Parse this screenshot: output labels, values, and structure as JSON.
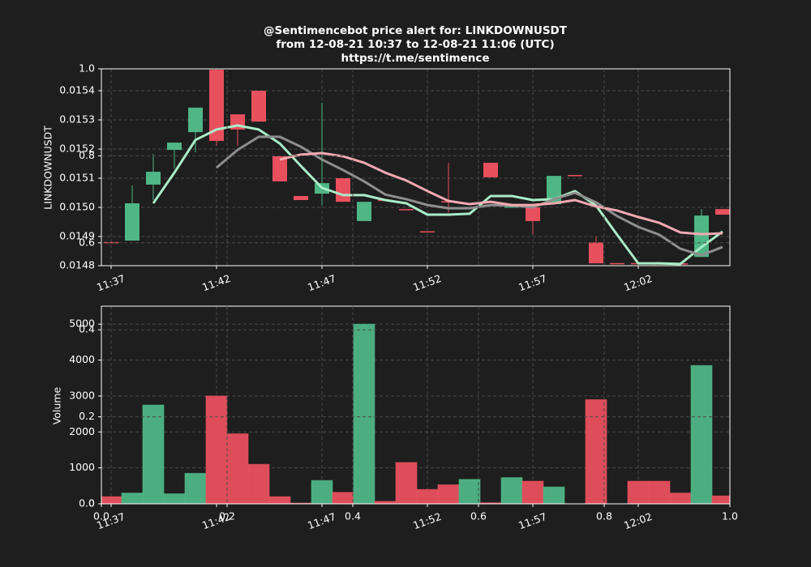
{
  "chart_data": [
    {
      "type": "candlestick",
      "title": [
        "@Sentimencebot price alert for: LINKDOWNUSDT",
        "from 12-08-21 10:37 to 12-08-21 11:06 (UTC)",
        "https://t.me/sentimence"
      ],
      "y_label": "LINKDOWNUSDT",
      "categories": [
        "11:37",
        null,
        null,
        null,
        null,
        "11:42",
        null,
        null,
        null,
        null,
        "11:47",
        null,
        null,
        null,
        null,
        "11:52",
        null,
        null,
        null,
        null,
        "11:57",
        null,
        null,
        null,
        null,
        "12:02",
        null,
        null,
        null,
        null
      ],
      "open": [
        0.014881,
        0.014886,
        0.015078,
        0.015197,
        0.015258,
        0.015472,
        0.015319,
        0.0154,
        0.015175,
        0.015039,
        0.015047,
        0.0151,
        0.014953,
        0.015026,
        0.014994,
        0.014918,
        0.015021,
        0.015,
        0.015153,
        0.015003,
        0.015,
        0.015011,
        0.015111,
        0.01488,
        0.014809,
        0.014809,
        0.014808,
        0.014808,
        0.01483,
        0.014994
      ],
      "high": [
        0.014881,
        0.015075,
        0.015183,
        0.015222,
        0.015342,
        0.015472,
        0.015319,
        0.0154,
        0.015175,
        0.015039,
        0.015358,
        0.0151,
        0.015019,
        0.015026,
        0.014994,
        0.014918,
        0.015153,
        0.015001,
        0.015153,
        0.015003,
        0.015,
        0.015108,
        0.015111,
        0.0149,
        0.014809,
        0.014809,
        0.014808,
        0.014808,
        0.014994,
        0.014994
      ],
      "low": [
        0.01488,
        0.014886,
        0.015025,
        0.015133,
        0.015189,
        0.015211,
        0.015211,
        0.015294,
        0.015089,
        0.015025,
        0.015008,
        0.015019,
        0.014953,
        0.015025,
        0.014992,
        0.014917,
        0.014983,
        0.015,
        0.015103,
        0.015003,
        0.014908,
        0.015011,
        0.015108,
        0.014808,
        0.014808,
        0.014808,
        0.014807,
        0.014807,
        0.01483,
        0.014975
      ],
      "close": [
        0.01488,
        0.015014,
        0.015122,
        0.015222,
        0.015342,
        0.015228,
        0.015267,
        0.015294,
        0.015089,
        0.015025,
        0.015083,
        0.015019,
        0.015019,
        0.015025,
        0.014992,
        0.014917,
        0.01502,
        0.015001,
        0.015103,
        0.015003,
        0.014953,
        0.015108,
        0.015108,
        0.014808,
        0.014808,
        0.014808,
        0.014807,
        0.014807,
        0.014972,
        0.014975
      ],
      "up_color": "#4fb686",
      "down_color": "#e9505e",
      "series": [
        {
          "color": "#a9ecc8",
          "values": [
            null,
            null,
            0.015014,
            0.015119,
            0.015231,
            0.015267,
            0.015281,
            0.015267,
            0.015219,
            0.015142,
            0.015067,
            0.015042,
            0.015042,
            0.015025,
            0.015014,
            0.014975,
            0.014975,
            0.014978,
            0.015039,
            0.015039,
            0.015025,
            0.015028,
            0.015056,
            0.015006,
            0.014906,
            0.014808,
            0.014808,
            0.014806,
            0.014864,
            0.014917
          ]
        },
        {
          "color": "#8e8e8e",
          "values": [
            null,
            null,
            null,
            null,
            null,
            0.015136,
            0.015197,
            0.015242,
            0.015242,
            0.015208,
            0.015164,
            0.015128,
            0.015089,
            0.015044,
            0.015028,
            0.015008,
            0.014997,
            0.014997,
            0.015008,
            0.015006,
            0.015,
            0.015028,
            0.01505,
            0.015017,
            0.01497,
            0.014933,
            0.014906,
            0.014858,
            0.014836,
            0.014864
          ]
        },
        {
          "color": "#f2a9b1",
          "values": [
            null,
            null,
            null,
            null,
            null,
            null,
            null,
            null,
            0.015164,
            0.015181,
            0.015186,
            0.015175,
            0.015153,
            0.015119,
            0.015092,
            0.015056,
            0.015022,
            0.015011,
            0.015019,
            0.015008,
            0.015008,
            0.015014,
            0.015025,
            0.015003,
            0.014989,
            0.014967,
            0.014947,
            0.014914,
            0.014908,
            0.014911
          ]
        }
      ],
      "ylim": [
        0.0148,
        0.015475
      ],
      "yticks": [
        0.0148,
        0.0149,
        {
          "value": 0.015,
          "label": "0.0150"
        },
        0.0151,
        0.0152,
        0.0153,
        0.0154
      ],
      "grid": true
    },
    {
      "type": "bar",
      "y_label": "Volume",
      "categories": [
        "11:37",
        null,
        null,
        null,
        null,
        "11:42",
        null,
        null,
        null,
        null,
        "11:47",
        null,
        null,
        null,
        null,
        "11:52",
        null,
        null,
        null,
        null,
        "11:57",
        null,
        null,
        null,
        null,
        "12:02",
        null,
        null,
        null,
        null
      ],
      "values": [
        200,
        300,
        2750,
        280,
        850,
        3000,
        1950,
        1100,
        200,
        20,
        650,
        320,
        5000,
        70,
        1150,
        400,
        530,
        680,
        30,
        730,
        630,
        470,
        0,
        2900,
        0,
        630,
        630,
        300,
        3850,
        220
      ],
      "ylim": [
        0,
        5500
      ],
      "yticks": [
        0,
        1000,
        2000,
        3000,
        4000,
        5000
      ],
      "grid": true
    },
    {
      "type": "axes",
      "xlim": [
        0,
        1
      ],
      "ylim": [
        0,
        1
      ],
      "xticks": [
        {
          "value": 0,
          "label": "0.0"
        },
        {
          "value": 0.2,
          "label": "0.2"
        },
        {
          "value": 0.4,
          "label": "0.4"
        },
        {
          "value": 0.6,
          "label": "0.6"
        },
        {
          "value": 0.8,
          "label": "0.8"
        },
        {
          "value": 1,
          "label": "1.0"
        }
      ],
      "yticks": [
        {
          "value": 0,
          "label": "0.0"
        },
        {
          "value": 0.2,
          "label": "0.2"
        },
        {
          "value": 0.4,
          "label": "0.4"
        },
        {
          "value": 0.6,
          "label": "0.6"
        },
        {
          "value": 0.8,
          "label": "0.8"
        },
        {
          "value": 1,
          "label": "1.0"
        }
      ],
      "grid": true
    }
  ]
}
